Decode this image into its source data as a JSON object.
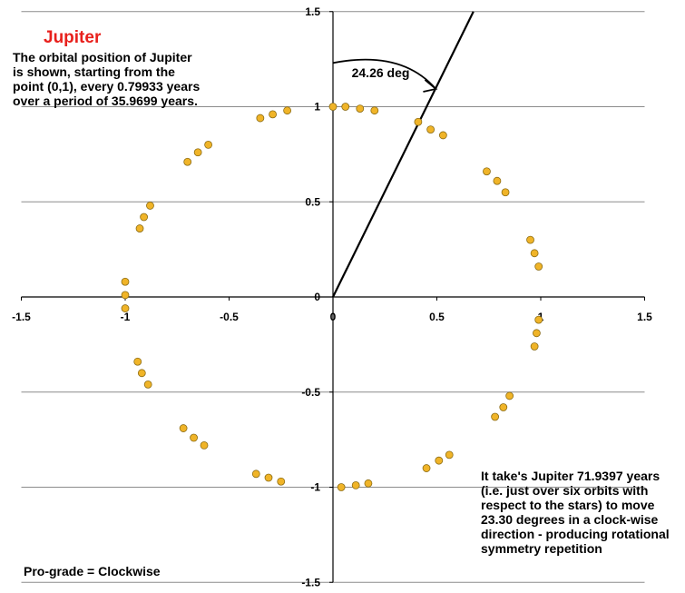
{
  "chart_data": {
    "type": "scatter",
    "title": "Jupiter",
    "description": "The orbital position of Jupiter is shown, starting from the point (0,1), every 0.79933 years over a period of 35.9699 years.",
    "xlim": [
      -1.5,
      1.5
    ],
    "ylim": [
      -1.5,
      1.5
    ],
    "x_ticks": [
      "-1.5",
      "-1",
      "-0.5",
      "0",
      "0.5",
      "1",
      "1.5"
    ],
    "y_ticks": [
      "1.5",
      "1",
      "0.5",
      "0",
      "-0.5",
      "-1",
      "-1.5"
    ],
    "grid": "horizontal",
    "marker_color": "#f0b428",
    "marker_edge": "#8c6c14",
    "angle_label": "24.26 deg",
    "angle_deg": 24.26,
    "points": [
      {
        "x": 0.0,
        "y": 1.0
      },
      {
        "x": 0.06,
        "y": 1.0
      },
      {
        "x": 0.13,
        "y": 0.99
      },
      {
        "x": 0.2,
        "y": 0.98
      },
      {
        "x": 0.41,
        "y": 0.92
      },
      {
        "x": 0.47,
        "y": 0.88
      },
      {
        "x": 0.53,
        "y": 0.85
      },
      {
        "x": 0.74,
        "y": 0.66
      },
      {
        "x": 0.79,
        "y": 0.61
      },
      {
        "x": 0.83,
        "y": 0.55
      },
      {
        "x": 0.95,
        "y": 0.3
      },
      {
        "x": 0.97,
        "y": 0.23
      },
      {
        "x": 0.99,
        "y": 0.16
      },
      {
        "x": 0.99,
        "y": -0.12
      },
      {
        "x": 0.98,
        "y": -0.19
      },
      {
        "x": 0.97,
        "y": -0.26
      },
      {
        "x": 0.85,
        "y": -0.52
      },
      {
        "x": 0.82,
        "y": -0.58
      },
      {
        "x": 0.78,
        "y": -0.63
      },
      {
        "x": 0.56,
        "y": -0.83
      },
      {
        "x": 0.51,
        "y": -0.86
      },
      {
        "x": 0.45,
        "y": -0.9
      },
      {
        "x": 0.17,
        "y": -0.98
      },
      {
        "x": 0.11,
        "y": -0.99
      },
      {
        "x": 0.04,
        "y": -1.0
      },
      {
        "x": -0.31,
        "y": -0.95
      },
      {
        "x": -0.25,
        "y": -0.97
      },
      {
        "x": -0.37,
        "y": -0.93
      },
      {
        "x": -0.62,
        "y": -0.78
      },
      {
        "x": -0.67,
        "y": -0.74
      },
      {
        "x": -0.72,
        "y": -0.69
      },
      {
        "x": -0.89,
        "y": -0.46
      },
      {
        "x": -0.92,
        "y": -0.4
      },
      {
        "x": -0.94,
        "y": -0.34
      },
      {
        "x": -1.0,
        "y": -0.06
      },
      {
        "x": -1.0,
        "y": 0.01
      },
      {
        "x": -1.0,
        "y": 0.08
      },
      {
        "x": -0.93,
        "y": 0.36
      },
      {
        "x": -0.91,
        "y": 0.42
      },
      {
        "x": -0.88,
        "y": 0.48
      },
      {
        "x": -0.7,
        "y": 0.71
      },
      {
        "x": -0.65,
        "y": 0.76
      },
      {
        "x": -0.6,
        "y": 0.8
      },
      {
        "x": -0.35,
        "y": 0.94
      },
      {
        "x": -0.29,
        "y": 0.96
      },
      {
        "x": -0.22,
        "y": 0.98
      }
    ],
    "annotations": {
      "right": "It take's Jupiter 71.9397 years (i.e. just over six orbits with respect to the stars) to move 23.30 degrees in a clock-wise direction - producing rotational symmetry repetition",
      "bottom_left": "Pro-grade = Clockwise"
    }
  }
}
